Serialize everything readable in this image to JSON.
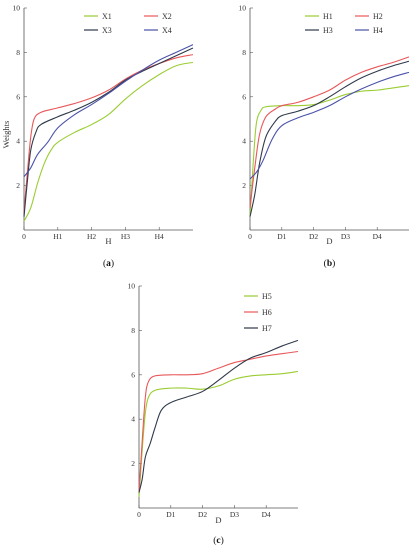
{
  "chart_data": [
    {
      "type": "line",
      "panel_label": "(a)",
      "panel_letter": "a",
      "xlabel": "H",
      "ylabel": "Weights",
      "xlim": [
        0,
        5
      ],
      "ylim": [
        0,
        10
      ],
      "x_ticks": [
        {
          "value": 0,
          "label": "0"
        },
        {
          "value": 1,
          "label": "H1"
        },
        {
          "value": 2,
          "label": "H2"
        },
        {
          "value": 3,
          "label": "H3"
        },
        {
          "value": 4,
          "label": "H4"
        }
      ],
      "y_ticks": [
        {
          "value": 2,
          "label": "2"
        },
        {
          "value": 4,
          "label": "4"
        },
        {
          "value": 6,
          "label": "6"
        },
        {
          "value": 8,
          "label": "8"
        },
        {
          "value": 10,
          "label": "10"
        }
      ],
      "legend": {
        "placement": "top-right",
        "columns": 2
      },
      "series": [
        {
          "name": "X1",
          "color": "#9ACD32",
          "points": [
            [
              0,
              0.4
            ],
            [
              0.2,
              1.0
            ],
            [
              0.4,
              2.1
            ],
            [
              0.6,
              3.0
            ],
            [
              0.8,
              3.6
            ],
            [
              1.0,
              3.95
            ],
            [
              1.5,
              4.4
            ],
            [
              2.0,
              4.75
            ],
            [
              2.5,
              5.2
            ],
            [
              3.0,
              5.9
            ],
            [
              3.5,
              6.5
            ],
            [
              4.0,
              7.0
            ],
            [
              4.5,
              7.4
            ],
            [
              5.0,
              7.55
            ]
          ]
        },
        {
          "name": "X2",
          "color": "#E8585A",
          "points": [
            [
              0,
              0.8
            ],
            [
              0.1,
              2.6
            ],
            [
              0.2,
              4.2
            ],
            [
              0.3,
              5.0
            ],
            [
              0.5,
              5.3
            ],
            [
              1.0,
              5.5
            ],
            [
              1.5,
              5.7
            ],
            [
              2.0,
              5.95
            ],
            [
              2.5,
              6.3
            ],
            [
              3.0,
              6.8
            ],
            [
              3.5,
              7.2
            ],
            [
              4.0,
              7.5
            ],
            [
              4.5,
              7.75
            ],
            [
              5.0,
              7.9
            ]
          ]
        },
        {
          "name": "X3",
          "color": "#2F3A4A",
          "points": [
            [
              0,
              0.6
            ],
            [
              0.1,
              2.2
            ],
            [
              0.2,
              3.6
            ],
            [
              0.35,
              4.4
            ],
            [
              0.5,
              4.75
            ],
            [
              1.0,
              5.1
            ],
            [
              1.5,
              5.4
            ],
            [
              2.0,
              5.75
            ],
            [
              2.5,
              6.2
            ],
            [
              3.0,
              6.75
            ],
            [
              3.5,
              7.15
            ],
            [
              4.0,
              7.5
            ],
            [
              4.5,
              7.85
            ],
            [
              5.0,
              8.2
            ]
          ]
        },
        {
          "name": "X4",
          "color": "#4A52A8",
          "points": [
            [
              0,
              2.4
            ],
            [
              0.2,
              2.8
            ],
            [
              0.4,
              3.4
            ],
            [
              0.7,
              3.95
            ],
            [
              1.0,
              4.6
            ],
            [
              1.5,
              5.2
            ],
            [
              2.0,
              5.65
            ],
            [
              2.5,
              6.15
            ],
            [
              3.0,
              6.7
            ],
            [
              3.5,
              7.2
            ],
            [
              4.0,
              7.65
            ],
            [
              4.5,
              8.0
            ],
            [
              5.0,
              8.35
            ]
          ]
        }
      ]
    },
    {
      "type": "line",
      "panel_label": "(b)",
      "panel_letter": "b",
      "xlabel": "D",
      "ylabel": "",
      "xlim": [
        0,
        5
      ],
      "ylim": [
        0,
        10
      ],
      "x_ticks": [
        {
          "value": 0,
          "label": "0"
        },
        {
          "value": 1,
          "label": "D1"
        },
        {
          "value": 2,
          "label": "D2"
        },
        {
          "value": 3,
          "label": "D3"
        },
        {
          "value": 4,
          "label": "D4"
        }
      ],
      "y_ticks": [
        {
          "value": 2,
          "label": "2"
        },
        {
          "value": 4,
          "label": "4"
        },
        {
          "value": 6,
          "label": "6"
        },
        {
          "value": 8,
          "label": "8"
        },
        {
          "value": 10,
          "label": "10"
        }
      ],
      "legend": {
        "placement": "top-right",
        "columns": 2
      },
      "series": [
        {
          "name": "H1",
          "color": "#9ACD32",
          "points": [
            [
              0,
              0.6
            ],
            [
              0.1,
              3.0
            ],
            [
              0.2,
              4.8
            ],
            [
              0.35,
              5.4
            ],
            [
              0.5,
              5.55
            ],
            [
              1.0,
              5.6
            ],
            [
              1.5,
              5.6
            ],
            [
              2.0,
              5.65
            ],
            [
              2.5,
              5.85
            ],
            [
              3.0,
              6.1
            ],
            [
              3.5,
              6.25
            ],
            [
              4.0,
              6.3
            ],
            [
              4.5,
              6.4
            ],
            [
              5.0,
              6.5
            ]
          ]
        },
        {
          "name": "H2",
          "color": "#E8585A",
          "points": [
            [
              0,
              1.0
            ],
            [
              0.15,
              2.8
            ],
            [
              0.3,
              4.3
            ],
            [
              0.5,
              5.1
            ],
            [
              0.8,
              5.45
            ],
            [
              1.0,
              5.6
            ],
            [
              1.5,
              5.75
            ],
            [
              2.0,
              6.0
            ],
            [
              2.5,
              6.3
            ],
            [
              3.0,
              6.75
            ],
            [
              3.5,
              7.1
            ],
            [
              4.0,
              7.35
            ],
            [
              4.5,
              7.55
            ],
            [
              5.0,
              7.8
            ]
          ]
        },
        {
          "name": "H3",
          "color": "#2F3A4A",
          "points": [
            [
              0,
              0.6
            ],
            [
              0.15,
              1.6
            ],
            [
              0.3,
              3.0
            ],
            [
              0.5,
              4.2
            ],
            [
              0.8,
              4.9
            ],
            [
              1.0,
              5.15
            ],
            [
              1.5,
              5.35
            ],
            [
              2.0,
              5.6
            ],
            [
              2.5,
              6.0
            ],
            [
              3.0,
              6.45
            ],
            [
              3.5,
              6.85
            ],
            [
              4.0,
              7.15
            ],
            [
              4.5,
              7.4
            ],
            [
              5.0,
              7.6
            ]
          ]
        },
        {
          "name": "H4",
          "color": "#4A52A8",
          "points": [
            [
              0,
              2.3
            ],
            [
              0.2,
              2.6
            ],
            [
              0.4,
              3.1
            ],
            [
              0.7,
              4.1
            ],
            [
              1.0,
              4.7
            ],
            [
              1.5,
              5.05
            ],
            [
              2.0,
              5.3
            ],
            [
              2.5,
              5.6
            ],
            [
              3.0,
              6.0
            ],
            [
              3.5,
              6.35
            ],
            [
              4.0,
              6.65
            ],
            [
              4.5,
              6.9
            ],
            [
              5.0,
              7.1
            ]
          ]
        }
      ]
    },
    {
      "type": "line",
      "panel_label": "(c)",
      "panel_letter": "c",
      "xlabel": "D",
      "ylabel": "",
      "xlim": [
        0,
        5
      ],
      "ylim": [
        0,
        10
      ],
      "x_ticks": [
        {
          "value": 0,
          "label": "0"
        },
        {
          "value": 1,
          "label": "D1"
        },
        {
          "value": 2,
          "label": "D2"
        },
        {
          "value": 3,
          "label": "D3"
        },
        {
          "value": 4,
          "label": "D4"
        }
      ],
      "y_ticks": [
        {
          "value": 2,
          "label": "2"
        },
        {
          "value": 4,
          "label": "4"
        },
        {
          "value": 6,
          "label": "6"
        },
        {
          "value": 8,
          "label": "8"
        },
        {
          "value": 10,
          "label": "10"
        }
      ],
      "legend": {
        "placement": "top-right",
        "columns": 1
      },
      "series": [
        {
          "name": "H5",
          "color": "#9ACD32",
          "points": [
            [
              0,
              0.5
            ],
            [
              0.1,
              2.6
            ],
            [
              0.2,
              4.3
            ],
            [
              0.3,
              5.0
            ],
            [
              0.5,
              5.3
            ],
            [
              1.0,
              5.4
            ],
            [
              1.5,
              5.4
            ],
            [
              2.0,
              5.35
            ],
            [
              2.5,
              5.5
            ],
            [
              3.0,
              5.8
            ],
            [
              3.5,
              5.95
            ],
            [
              4.0,
              6.0
            ],
            [
              4.5,
              6.05
            ],
            [
              5.0,
              6.15
            ]
          ]
        },
        {
          "name": "H6",
          "color": "#E8585A",
          "points": [
            [
              0,
              0.7
            ],
            [
              0.1,
              3.0
            ],
            [
              0.2,
              5.0
            ],
            [
              0.3,
              5.7
            ],
            [
              0.5,
              5.95
            ],
            [
              1.0,
              6.0
            ],
            [
              1.5,
              6.0
            ],
            [
              2.0,
              6.05
            ],
            [
              2.5,
              6.3
            ],
            [
              3.0,
              6.55
            ],
            [
              3.5,
              6.7
            ],
            [
              4.0,
              6.85
            ],
            [
              4.5,
              6.95
            ],
            [
              5.0,
              7.05
            ]
          ]
        },
        {
          "name": "H7",
          "color": "#2F3A4A",
          "points": [
            [
              0,
              0.7
            ],
            [
              0.1,
              1.3
            ],
            [
              0.2,
              2.3
            ],
            [
              0.35,
              2.9
            ],
            [
              0.5,
              3.6
            ],
            [
              0.7,
              4.4
            ],
            [
              1.0,
              4.75
            ],
            [
              1.5,
              5.0
            ],
            [
              2.0,
              5.25
            ],
            [
              2.5,
              5.75
            ],
            [
              3.0,
              6.3
            ],
            [
              3.5,
              6.75
            ],
            [
              4.0,
              7.0
            ],
            [
              4.5,
              7.3
            ],
            [
              5.0,
              7.55
            ]
          ]
        }
      ]
    }
  ]
}
